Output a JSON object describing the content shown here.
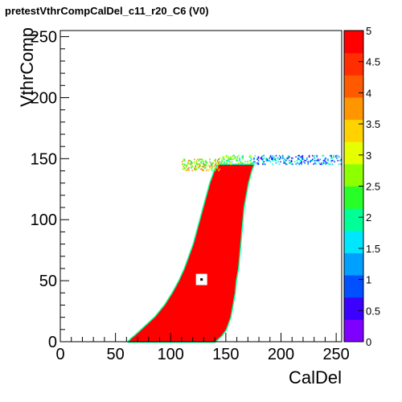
{
  "chart_data": {
    "type": "heatmap",
    "title": "pretestVthrCompCalDel_c11_r20_C6 (V0)",
    "xlabel": "CalDel",
    "ylabel": "VthrComp",
    "xlim": [
      0,
      255
    ],
    "ylim": [
      0,
      255
    ],
    "x_ticks": [
      "0",
      "50",
      "100",
      "150",
      "200",
      "250"
    ],
    "y_ticks": [
      "0",
      "50",
      "100",
      "150",
      "200",
      "250"
    ],
    "z_range": [
      0,
      5
    ],
    "palette_ticks": [
      "0",
      "0.5",
      "1",
      "1.5",
      "2",
      "2.5",
      "3",
      "3.5",
      "4",
      "4.5",
      "5"
    ],
    "palette_colors": [
      "#7f00ff",
      "#3c00ff",
      "#0050ff",
      "#00a0ff",
      "#00e6ff",
      "#00ff96",
      "#28ff28",
      "#8cff00",
      "#e6ff00",
      "#ffd200",
      "#ff9600",
      "#ff5a00",
      "#ff2d00",
      "#ff0000"
    ],
    "fill_color": "#ff0000",
    "region": {
      "bottom_edge": [
        [
          0,
          62
        ],
        [
          2,
          64
        ],
        [
          5,
          68
        ],
        [
          10,
          74
        ],
        [
          20,
          86
        ],
        [
          30,
          95
        ],
        [
          40,
          102
        ],
        [
          50,
          108
        ],
        [
          60,
          113
        ],
        [
          70,
          117
        ],
        [
          80,
          121
        ],
        [
          90,
          124
        ],
        [
          100,
          127
        ],
        [
          110,
          130
        ],
        [
          120,
          133
        ],
        [
          130,
          136
        ],
        [
          140,
          140
        ],
        [
          145,
          143
        ]
      ],
      "top_edge": [
        [
          0,
          140
        ],
        [
          5,
          146
        ],
        [
          10,
          150
        ],
        [
          20,
          154
        ],
        [
          30,
          156
        ],
        [
          40,
          158
        ],
        [
          50,
          159
        ],
        [
          60,
          161
        ],
        [
          70,
          162
        ],
        [
          80,
          163
        ],
        [
          90,
          164
        ],
        [
          100,
          165
        ],
        [
          110,
          166
        ],
        [
          120,
          168
        ],
        [
          130,
          170
        ],
        [
          140,
          173
        ],
        [
          145,
          175
        ]
      ],
      "plateau": {
        "y_range": [
          145,
          153
        ],
        "x_range": [
          143,
          255
        ]
      }
    },
    "hole": {
      "x": 128,
      "y": 51
    }
  }
}
